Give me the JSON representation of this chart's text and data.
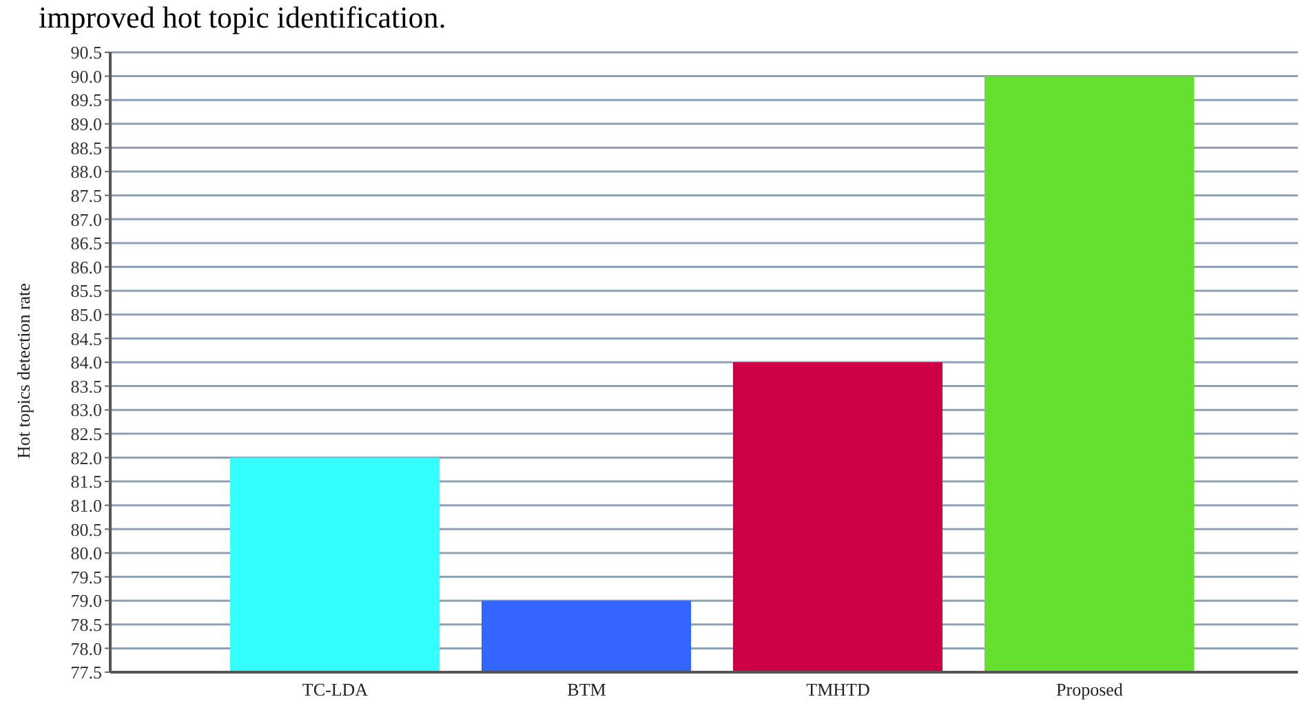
{
  "chart_data": {
    "type": "bar",
    "ylabel": "Hot  topics detection rate",
    "annotations": [
      "improved hot topic identification."
    ],
    "categories": [
      "TC-LDA",
      "BTM",
      "TMHTD",
      "Proposed"
    ],
    "values": [
      82.0,
      79.0,
      84.0,
      90.0
    ],
    "colors": [
      "#33ffff",
      "#3366ff",
      "#cc0044",
      "#66e02e"
    ],
    "ylim": [
      77.5,
      90.5
    ],
    "yticks": [
      {
        "value": 77.5,
        "label": "77.5"
      },
      {
        "value": 78,
        "label": "78.0"
      },
      {
        "value": 78.5,
        "label": "78.5"
      },
      {
        "value": 79,
        "label": "79.0"
      },
      {
        "value": 79.5,
        "label": "79.5"
      },
      {
        "value": 80,
        "label": "80.0"
      },
      {
        "value": 80.5,
        "label": "80.5"
      },
      {
        "value": 81,
        "label": "81.0"
      },
      {
        "value": 81.5,
        "label": "81.5"
      },
      {
        "value": 82,
        "label": "82.0"
      },
      {
        "value": 82.5,
        "label": "82.5"
      },
      {
        "value": 83,
        "label": "83.0"
      },
      {
        "value": 83.5,
        "label": "83.5"
      },
      {
        "value": 84,
        "label": "84.0"
      },
      {
        "value": 84.5,
        "label": "84.5"
      },
      {
        "value": 85,
        "label": "85.0"
      },
      {
        "value": 85.5,
        "label": "85.5"
      },
      {
        "value": 86,
        "label": "86.0"
      },
      {
        "value": 86.5,
        "label": "86.5"
      },
      {
        "value": 87,
        "label": "87.0"
      },
      {
        "value": 87.5,
        "label": "87.5"
      },
      {
        "value": 88,
        "label": "88.0"
      },
      {
        "value": 88.5,
        "label": "88.5"
      },
      {
        "value": 89,
        "label": "89.0"
      },
      {
        "value": 89.5,
        "label": "89.5"
      },
      {
        "value": 90,
        "label": "90.0"
      },
      {
        "value": 90.5,
        "label": "90.5"
      }
    ],
    "grid": "y",
    "legend": false
  }
}
